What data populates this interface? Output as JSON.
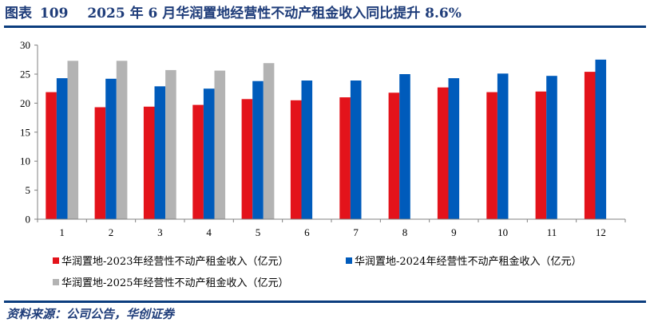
{
  "figure": {
    "label": "图表",
    "number": "109",
    "title": "2025 年 6 月华润置地经营性不动产租金收入同比提升 8.6%",
    "source": "资料来源：公司公告，华创证券"
  },
  "colors": {
    "series_2023": "#e3131b",
    "series_2024": "#005bbb",
    "series_2025": "#b3b3b3",
    "rule": "#0b3d7e",
    "title_text": "#1f3d7a",
    "axis": "#808080"
  },
  "legend": [
    {
      "label": "华润置地-2023年经营性不动产租金收入（亿元）",
      "color": "#e3131b"
    },
    {
      "label": "华润置地-2024年经营性不动产租金收入（亿元）",
      "color": "#005bbb"
    },
    {
      "label": "华润置地-2025年经营性不动产租金收入（亿元）",
      "color": "#b3b3b3"
    }
  ],
  "chart_data": {
    "type": "bar",
    "title": "2025 年 6 月华润置地经营性不动产租金收入同比提升 8.6%",
    "xlabel": "",
    "ylabel": "",
    "categories": [
      "1",
      "2",
      "3",
      "4",
      "5",
      "6",
      "7",
      "8",
      "9",
      "10",
      "11",
      "12"
    ],
    "series": [
      {
        "name": "华润置地-2023年经营性不动产租金收入（亿元）",
        "values": [
          21.9,
          19.3,
          19.4,
          19.7,
          20.7,
          20.5,
          21.0,
          21.8,
          22.7,
          21.9,
          22.0,
          25.4
        ]
      },
      {
        "name": "华润置地-2024年经营性不动产租金收入（亿元）",
        "values": [
          24.3,
          24.2,
          22.9,
          22.5,
          23.8,
          23.9,
          23.9,
          25.0,
          24.3,
          25.1,
          24.7,
          27.5
        ]
      },
      {
        "name": "华润置地-2025年经营性不动产租金收入（亿元）",
        "values": [
          27.3,
          27.3,
          25.7,
          25.6,
          26.9,
          null,
          null,
          null,
          null,
          null,
          null,
          null
        ]
      }
    ],
    "ylim": [
      0,
      30
    ],
    "yticks": [
      0,
      5,
      10,
      15,
      20,
      25,
      30
    ],
    "grid": false,
    "legend_position": "bottom"
  }
}
